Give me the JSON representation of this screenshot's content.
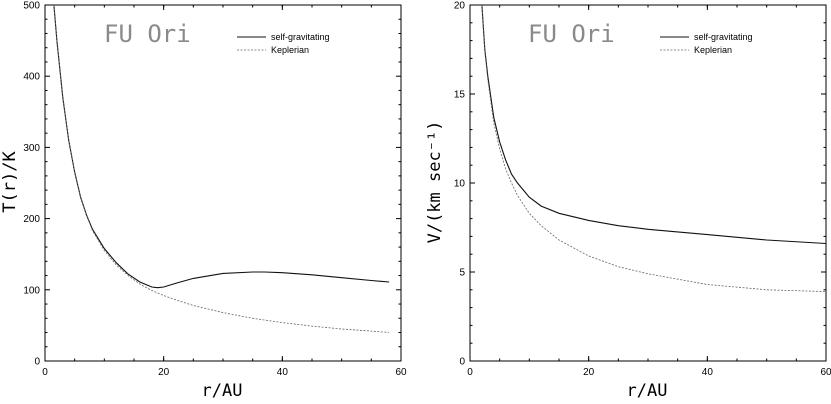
{
  "chart_data": [
    {
      "type": "line",
      "title": "FU Ori",
      "xlabel": "r/AU",
      "ylabel": "T(r)/K",
      "xlim": [
        0,
        60
      ],
      "ylim": [
        0,
        500
      ],
      "xticks": [
        "0",
        "20",
        "40",
        "60"
      ],
      "yticks": [
        "0",
        "100",
        "200",
        "300",
        "400",
        "500"
      ],
      "grid": false,
      "legend_position": "top-right",
      "series": [
        {
          "name": "self-gravitating",
          "style": "solid",
          "x": [
            1.5,
            2,
            3,
            4,
            5,
            6,
            7,
            8,
            10,
            12,
            14,
            16,
            18,
            19,
            20,
            22,
            25,
            30,
            35,
            37,
            40,
            45,
            50,
            55,
            58
          ],
          "y": [
            500,
            450,
            370,
            310,
            265,
            230,
            205,
            185,
            158,
            138,
            122,
            111,
            104,
            103,
            104,
            109,
            116,
            123,
            125,
            125,
            124,
            121,
            117,
            113,
            111
          ]
        },
        {
          "name": "Keplerian",
          "style": "dashed",
          "x": [
            1.5,
            2,
            3,
            4,
            5,
            6,
            7,
            8,
            10,
            12,
            14,
            16,
            18,
            20,
            22,
            25,
            30,
            35,
            40,
            45,
            50,
            55,
            58
          ],
          "y": [
            500,
            450,
            370,
            310,
            265,
            230,
            205,
            183,
            155,
            135,
            120,
            108,
            99,
            92,
            86,
            78,
            68,
            60,
            54,
            49,
            45,
            42,
            40
          ]
        }
      ]
    },
    {
      "type": "line",
      "title": "FU Ori",
      "xlabel": "r/AU",
      "ylabel": "V/(km sec⁻¹)",
      "xlim": [
        0,
        60
      ],
      "ylim": [
        0,
        20
      ],
      "xticks": [
        "0",
        "20",
        "40",
        "60"
      ],
      "yticks": [
        "0",
        "5",
        "10",
        "15",
        "20"
      ],
      "grid": false,
      "legend_position": "top-right",
      "series": [
        {
          "name": "self-gravitating",
          "style": "solid",
          "x": [
            2,
            2.5,
            3,
            4,
            5,
            6,
            7,
            8,
            10,
            12,
            15,
            20,
            25,
            30,
            40,
            50,
            60
          ],
          "y": [
            20,
            17.5,
            16,
            13.7,
            12.3,
            11.3,
            10.5,
            10,
            9.2,
            8.7,
            8.3,
            7.9,
            7.6,
            7.4,
            7.1,
            6.8,
            6.6
          ]
        },
        {
          "name": "Keplerian",
          "style": "dashed",
          "x": [
            2,
            2.5,
            3,
            4,
            5,
            6,
            7,
            8,
            10,
            12,
            15,
            20,
            25,
            30,
            40,
            50,
            60
          ],
          "y": [
            20,
            17.4,
            15.8,
            13.4,
            11.9,
            10.8,
            10.0,
            9.3,
            8.3,
            7.6,
            6.8,
            5.9,
            5.3,
            4.9,
            4.3,
            4.0,
            3.9
          ]
        }
      ]
    }
  ]
}
